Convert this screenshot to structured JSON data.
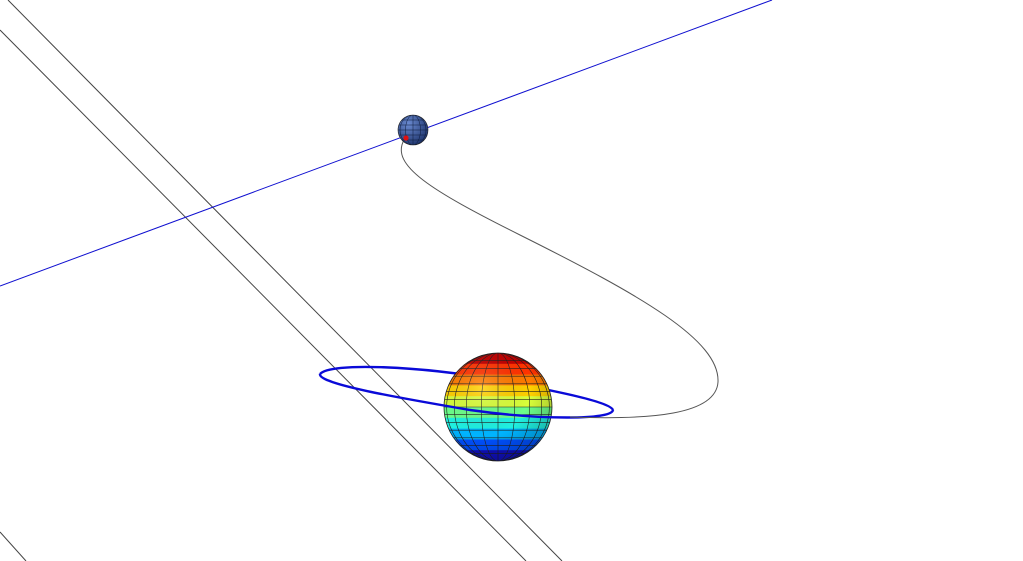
{
  "scene": {
    "background": "#ffffff",
    "colors": {
      "reference_line": "#444444",
      "trajectory": "#555555",
      "direction_line": "#1010d0",
      "orbit_ring": "#0a0ad8",
      "small_body": "#2a4a8a",
      "small_body_marker": "#e01010",
      "mesh_grid": "#202020"
    },
    "large_body_colormap": [
      "#c00000",
      "#ff3300",
      "#ff7a00",
      "#ffd000",
      "#d9ff3a",
      "#6cff8a",
      "#20f0e0",
      "#00b4ff",
      "#0050ff",
      "#1010c0"
    ],
    "icons": {
      "large_body": "colormap-sphere-icon",
      "small_body": "small-sphere-icon"
    }
  }
}
